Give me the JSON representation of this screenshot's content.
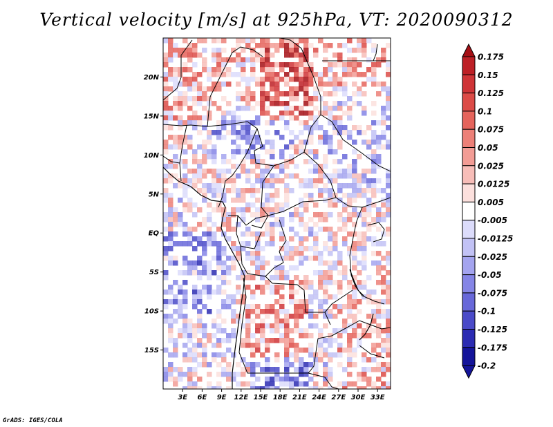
{
  "title": "Vertical velocity [m/s] at 925hPa, VT: 2020090312",
  "credit": "GrADS: IGES/COLA",
  "map": {
    "lon_range": [
      0,
      35
    ],
    "lat_range": [
      -20,
      25
    ],
    "lat_ticks": [
      {
        "value": 20,
        "label": "20N"
      },
      {
        "value": 15,
        "label": "15N"
      },
      {
        "value": 10,
        "label": "10N"
      },
      {
        "value": 5,
        "label": "5N"
      },
      {
        "value": 0,
        "label": "EQ"
      },
      {
        "value": -5,
        "label": "5S"
      },
      {
        "value": -10,
        "label": "10S"
      },
      {
        "value": -15,
        "label": "15S"
      }
    ],
    "lon_ticks": [
      {
        "value": 3,
        "label": "3E"
      },
      {
        "value": 6,
        "label": "6E"
      },
      {
        "value": 9,
        "label": "9E"
      },
      {
        "value": 12,
        "label": "12E"
      },
      {
        "value": 15,
        "label": "15E"
      },
      {
        "value": 18,
        "label": "18E"
      },
      {
        "value": 21,
        "label": "21E"
      },
      {
        "value": 24,
        "label": "24E"
      },
      {
        "value": 27,
        "label": "27E"
      },
      {
        "value": 30,
        "label": "30E"
      },
      {
        "value": 33,
        "label": "33E"
      }
    ]
  },
  "colorbar": {
    "labels": [
      "0.175",
      "0.15",
      "0.125",
      "0.1",
      "0.075",
      "0.05",
      "0.025",
      "0.0125",
      "0.005",
      "-0.005",
      "-0.0125",
      "-0.025",
      "-0.05",
      "-0.075",
      "-0.1",
      "-0.125",
      "-0.175",
      "-0.2"
    ],
    "colors": [
      "#a50f15",
      "#bd2026",
      "#cf3437",
      "#dc4b47",
      "#e5645c",
      "#ec8078",
      "#f29c95",
      "#f7bdb8",
      "#fce0dd",
      "#ffffff",
      "#dcdcfb",
      "#c2c2f5",
      "#a4a4ef",
      "#8585e6",
      "#6868d9",
      "#4a4ac8",
      "#2b2bb2",
      "#14149a"
    ]
  }
}
